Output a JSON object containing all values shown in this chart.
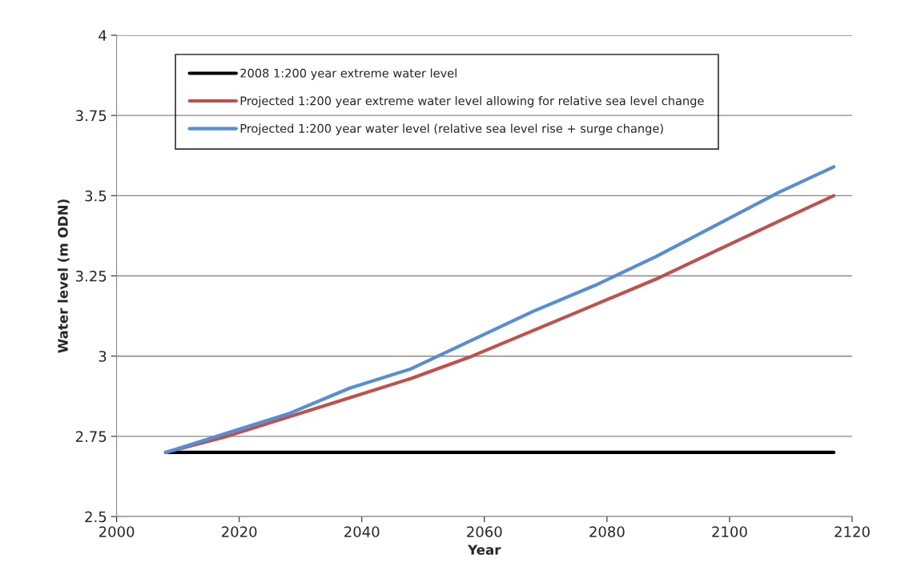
{
  "chart_data": {
    "type": "line",
    "xlabel": "Year",
    "ylabel": "Water level (m ODN)",
    "xlim": [
      2000,
      2120
    ],
    "xticks": [
      2000,
      2020,
      2040,
      2060,
      2080,
      2100,
      2120
    ],
    "ylim": [
      2.5,
      4
    ],
    "yticks": [
      2.5,
      2.75,
      3,
      3.25,
      3.5,
      3.75,
      4
    ],
    "grid": "y",
    "legend": "top left",
    "marker": "none",
    "line_style": "solid",
    "series": [
      {
        "name": "2008 1:200 year extreme water level",
        "color": "#000000",
        "x": [
          2008,
          2117
        ],
        "values": [
          2.7,
          2.7
        ]
      },
      {
        "name": "Projected 1:200 year extreme water level allowing for relative sea level change",
        "color": "#c0504d",
        "x": [
          2008,
          2018,
          2028,
          2038,
          2048,
          2058,
          2068,
          2078,
          2088,
          2098,
          2108,
          2117
        ],
        "values": [
          2.7,
          2.75,
          2.81,
          2.87,
          2.93,
          3.0,
          3.08,
          3.16,
          3.24,
          3.33,
          3.42,
          3.5
        ]
      },
      {
        "name": "Projected 1:200 year water level (relative sea level rise + surge change)",
        "color": "#558ed5",
        "x": [
          2008,
          2018,
          2028,
          2038,
          2048,
          2058,
          2068,
          2078,
          2088,
          2098,
          2108,
          2117
        ],
        "values": [
          2.7,
          2.76,
          2.82,
          2.9,
          2.96,
          3.05,
          3.14,
          3.22,
          3.31,
          3.41,
          3.51,
          3.59
        ]
      }
    ]
  }
}
